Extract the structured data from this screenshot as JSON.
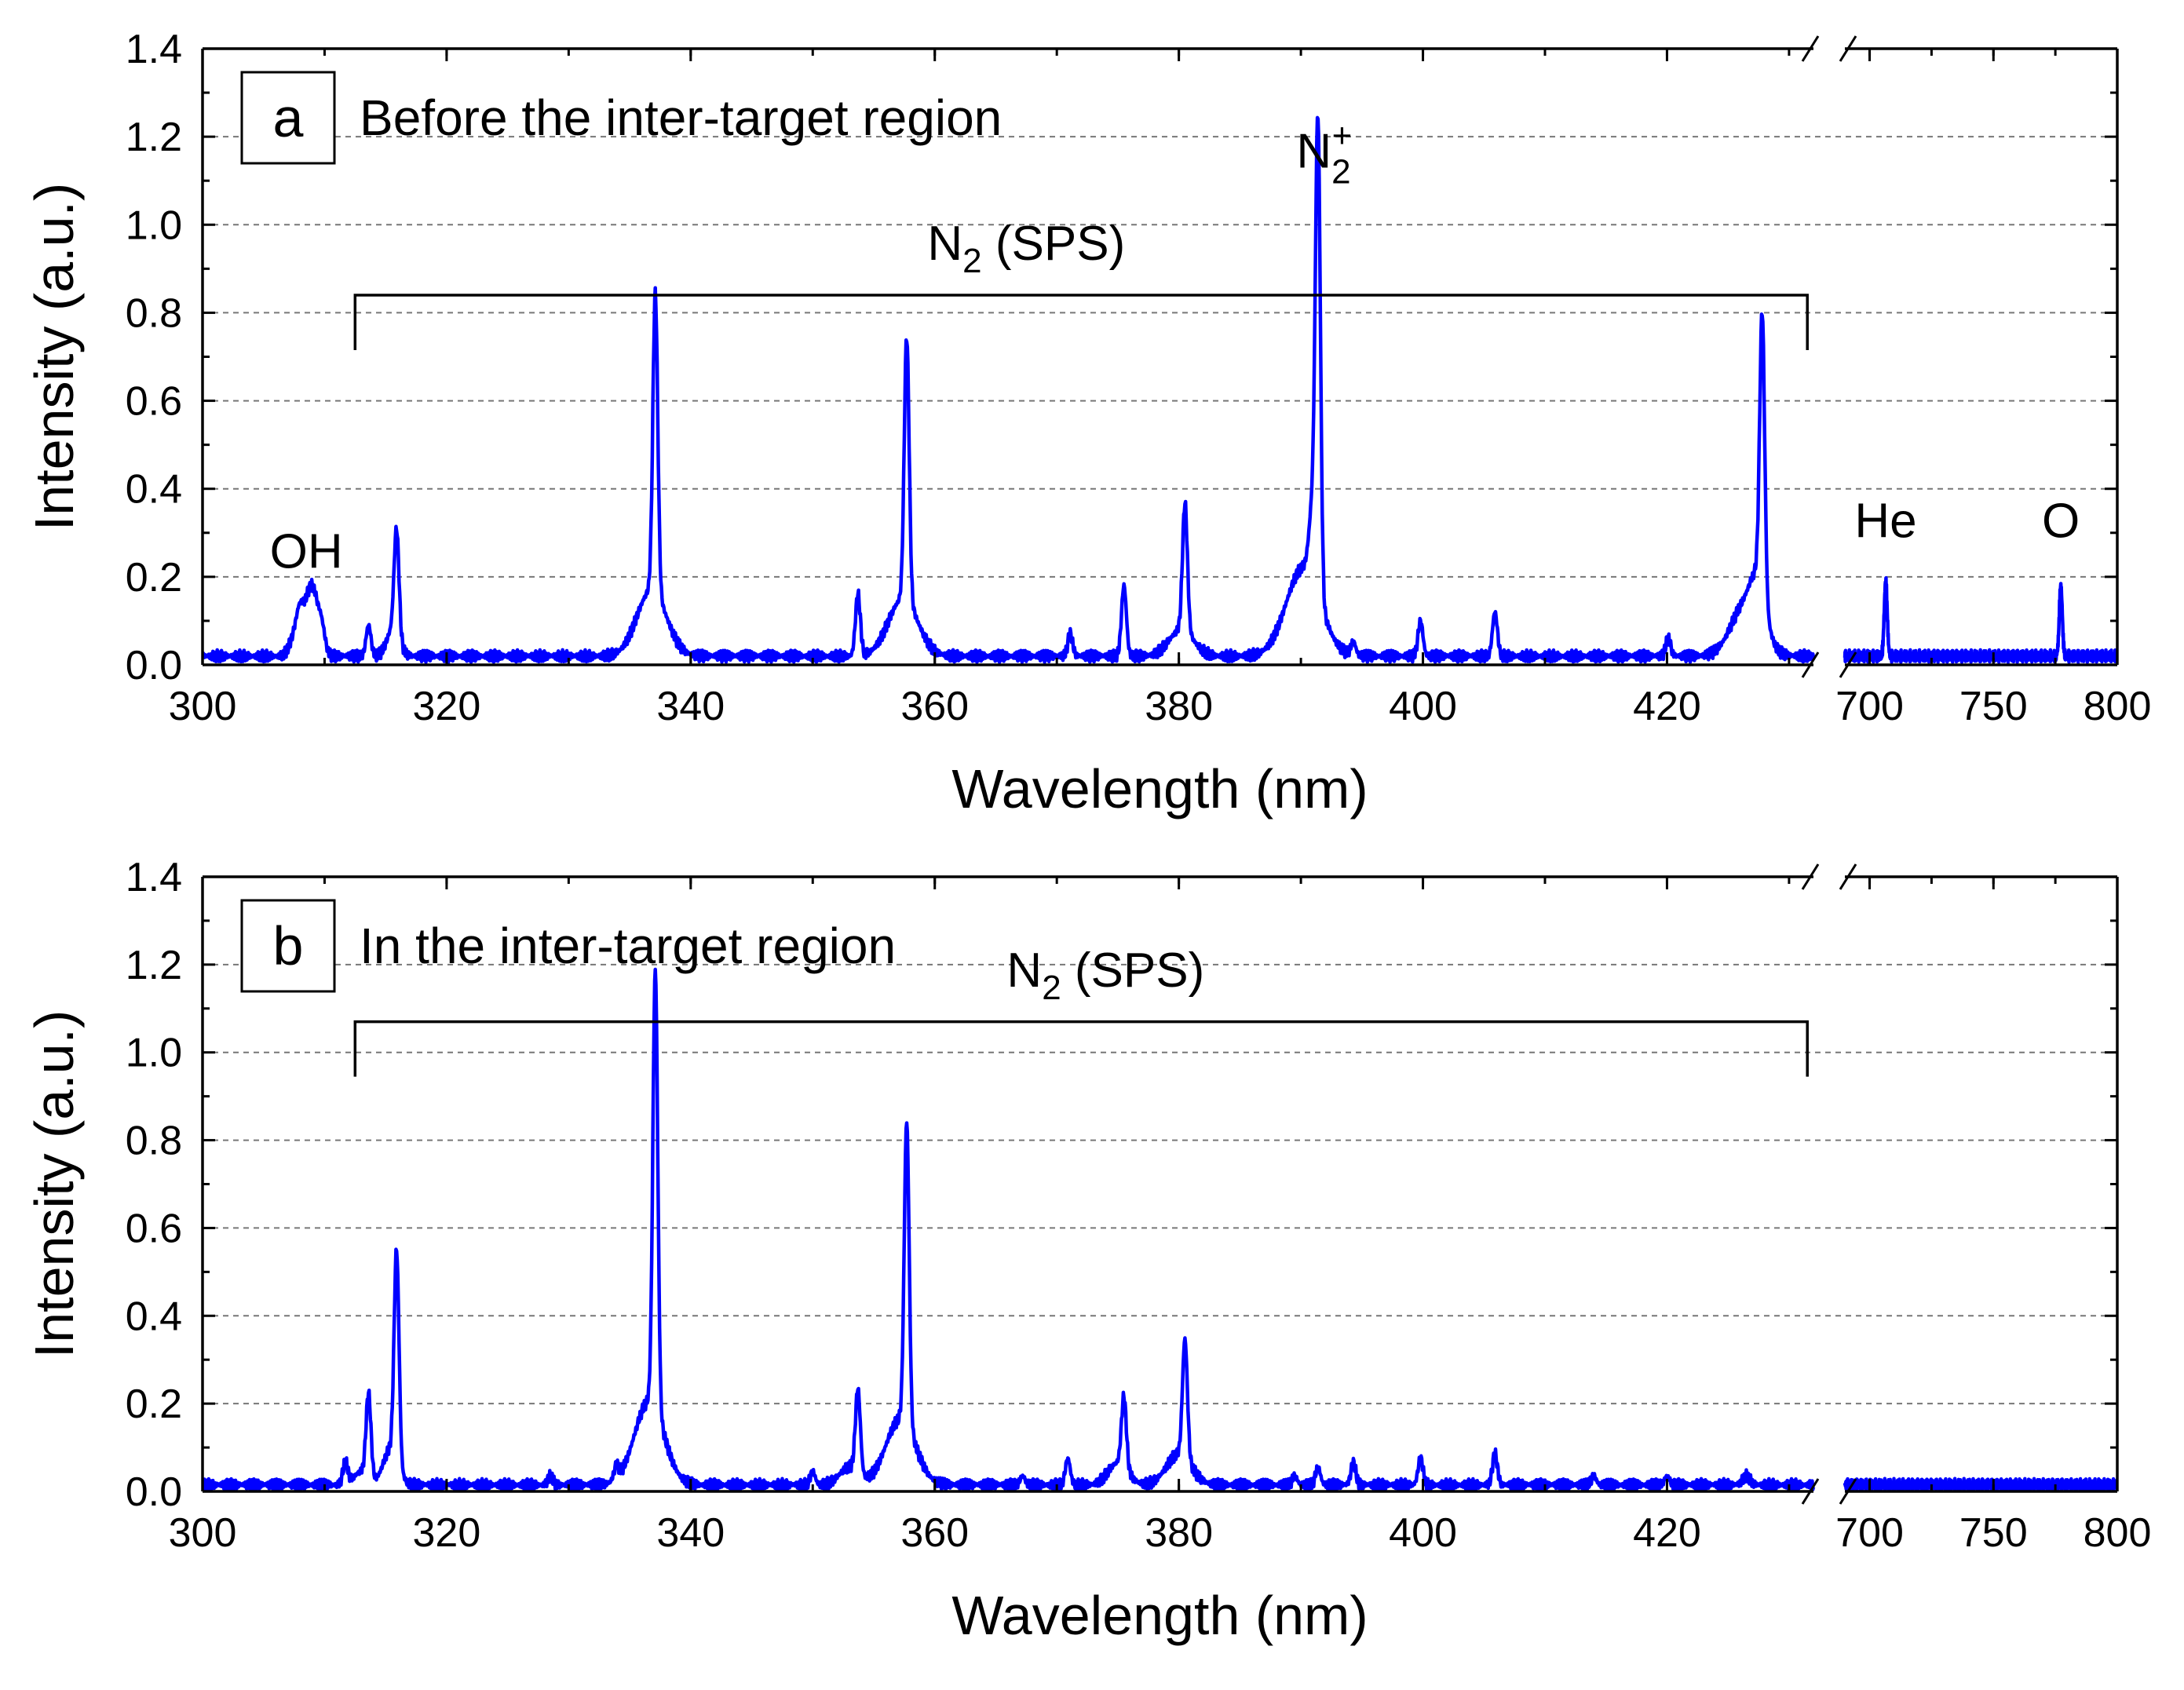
{
  "chart_data": [
    {
      "type": "line",
      "panel_letter": "a",
      "title": "Before the inter-target region",
      "xlabel": "Wavelength (nm)",
      "ylabel": "Intensity (a.u.)",
      "ylim": [
        0,
        1.4
      ],
      "yticks": [
        "0.0",
        "0.2",
        "0.4",
        "0.6",
        "0.8",
        "1.0",
        "1.2",
        "1.4"
      ],
      "x_broken_axis": true,
      "x_segment1": {
        "range": [
          300,
          432
        ],
        "ticks": [
          "300",
          "320",
          "340",
          "360",
          "380",
          "400",
          "420"
        ]
      },
      "x_segment2": {
        "range": [
          690,
          800
        ],
        "ticks": [
          "700",
          "750",
          "800"
        ]
      },
      "grid": "horizontal dashed",
      "series": [
        {
          "name": "spectrum",
          "color": "#0000ff",
          "baseline": 0.02,
          "peaks_segment1": [
            {
              "x": 307.5,
              "y": 0.04,
              "w": 0.4
            },
            {
              "x": 308.0,
              "y": 0.09,
              "w": 0.3
            },
            {
              "x": 308.6,
              "y": 0.1,
              "w": 0.3
            },
            {
              "x": 309.1,
              "y": 0.12,
              "w": 0.3
            },
            {
              "x": 309.7,
              "y": 0.08,
              "w": 0.3
            },
            {
              "x": 313.6,
              "y": 0.07,
              "w": 0.2
            },
            {
              "x": 315.6,
              "y": 0.06,
              "w": 0.5
            },
            {
              "x": 315.9,
              "y": 0.24,
              "w": 0.2
            },
            {
              "x": 336.8,
              "y": 0.15,
              "w": 1.2
            },
            {
              "x": 337.1,
              "y": 0.68,
              "w": 0.2
            },
            {
              "x": 353.7,
              "y": 0.14,
              "w": 0.2
            },
            {
              "x": 357.4,
              "y": 0.13,
              "w": 1.2
            },
            {
              "x": 357.7,
              "y": 0.6,
              "w": 0.2
            },
            {
              "x": 371.1,
              "y": 0.05,
              "w": 0.2
            },
            {
              "x": 375.5,
              "y": 0.16,
              "w": 0.2
            },
            {
              "x": 380.2,
              "y": 0.06,
              "w": 1.0
            },
            {
              "x": 380.5,
              "y": 0.29,
              "w": 0.2
            },
            {
              "x": 390.2,
              "y": 0.2,
              "w": 1.4
            },
            {
              "x": 391.0,
              "y": 0.18,
              "w": 0.3
            },
            {
              "x": 391.4,
              "y": 1.02,
              "w": 0.2
            },
            {
              "x": 394.3,
              "y": 0.03,
              "w": 0.2
            },
            {
              "x": 399.8,
              "y": 0.08,
              "w": 0.2
            },
            {
              "x": 405.9,
              "y": 0.1,
              "w": 0.2
            },
            {
              "x": 420.1,
              "y": 0.04,
              "w": 0.2
            },
            {
              "x": 426.5,
              "y": 0.12,
              "w": 1.2
            },
            {
              "x": 427.5,
              "y": 0.1,
              "w": 0.6
            },
            {
              "x": 427.8,
              "y": 0.63,
              "w": 0.2
            }
          ],
          "peaks_segment2": [
            {
              "x": 706.5,
              "y": 0.17,
              "w": 0.6
            },
            {
              "x": 777.2,
              "y": 0.16,
              "w": 0.6
            }
          ]
        }
      ],
      "annotations": [
        {
          "text": "OH",
          "kind": "line",
          "x": 308.5,
          "y": 0.22
        },
        {
          "text": "He",
          "kind": "line",
          "x": 706.5,
          "y": 0.29
        },
        {
          "text": "O",
          "kind": "line",
          "x": 777.2,
          "y": 0.29
        },
        {
          "text": "N",
          "kind": "ion",
          "sub": "2",
          "sup": "+",
          "x": 391.4,
          "y": 1.13
        }
      ],
      "bracket": {
        "label": "N",
        "label_sub": "2",
        "label_rest": " (SPS)",
        "x_start": 312.5,
        "x_end": 431.5,
        "y": 0.84,
        "label_x": 367.5,
        "label_y": 0.92
      }
    },
    {
      "type": "line",
      "panel_letter": "b",
      "title": "In the inter-target region",
      "xlabel": "Wavelength (nm)",
      "ylabel": "Intensity (a.u.)",
      "ylim": [
        0,
        1.4
      ],
      "yticks": [
        "0.0",
        "0.2",
        "0.4",
        "0.6",
        "0.8",
        "1.0",
        "1.2",
        "1.4"
      ],
      "x_broken_axis": true,
      "x_segment1": {
        "range": [
          300,
          432
        ],
        "ticks": [
          "300",
          "320",
          "340",
          "360",
          "380",
          "400",
          "420"
        ]
      },
      "x_segment2": {
        "range": [
          690,
          800
        ],
        "ticks": [
          "700",
          "750",
          "800"
        ]
      },
      "grid": "horizontal dashed",
      "series": [
        {
          "name": "spectrum",
          "color": "#0000ff",
          "baseline": 0.015,
          "peaks_segment1": [
            {
              "x": 311.7,
              "y": 0.05,
              "w": 0.2
            },
            {
              "x": 313.0,
              "y": 0.03,
              "w": 0.6
            },
            {
              "x": 313.6,
              "y": 0.19,
              "w": 0.2
            },
            {
              "x": 315.4,
              "y": 0.08,
              "w": 0.6
            },
            {
              "x": 315.9,
              "y": 0.48,
              "w": 0.2
            },
            {
              "x": 328.5,
              "y": 0.02,
              "w": 0.2
            },
            {
              "x": 333.9,
              "y": 0.03,
              "w": 0.2
            },
            {
              "x": 336.6,
              "y": 0.19,
              "w": 1.2
            },
            {
              "x": 337.1,
              "y": 1.0,
              "w": 0.2
            },
            {
              "x": 350.0,
              "y": 0.03,
              "w": 0.2
            },
            {
              "x": 353.0,
              "y": 0.04,
              "w": 0.8
            },
            {
              "x": 353.7,
              "y": 0.19,
              "w": 0.2
            },
            {
              "x": 357.2,
              "y": 0.15,
              "w": 1.2
            },
            {
              "x": 357.7,
              "y": 0.69,
              "w": 0.2
            },
            {
              "x": 367.2,
              "y": 0.02,
              "w": 0.2
            },
            {
              "x": 370.9,
              "y": 0.06,
              "w": 0.2
            },
            {
              "x": 375.0,
              "y": 0.05,
              "w": 0.8
            },
            {
              "x": 375.5,
              "y": 0.16,
              "w": 0.2
            },
            {
              "x": 380.0,
              "y": 0.07,
              "w": 1.0
            },
            {
              "x": 380.5,
              "y": 0.27,
              "w": 0.2
            },
            {
              "x": 389.5,
              "y": 0.02,
              "w": 0.2
            },
            {
              "x": 391.4,
              "y": 0.04,
              "w": 0.2
            },
            {
              "x": 394.3,
              "y": 0.05,
              "w": 0.2
            },
            {
              "x": 399.8,
              "y": 0.06,
              "w": 0.2
            },
            {
              "x": 405.9,
              "y": 0.07,
              "w": 0.2
            },
            {
              "x": 414.0,
              "y": 0.02,
              "w": 0.2
            },
            {
              "x": 420.0,
              "y": 0.02,
              "w": 0.2
            },
            {
              "x": 426.5,
              "y": 0.02,
              "w": 0.3
            }
          ],
          "peaks_segment2": []
        }
      ],
      "annotations": [],
      "bracket": {
        "label": "N",
        "label_sub": "2",
        "label_rest": " (SPS)",
        "x_start": 312.5,
        "x_end": 431.5,
        "y": 1.07,
        "label_x": 374.0,
        "label_y": 1.15
      }
    }
  ]
}
